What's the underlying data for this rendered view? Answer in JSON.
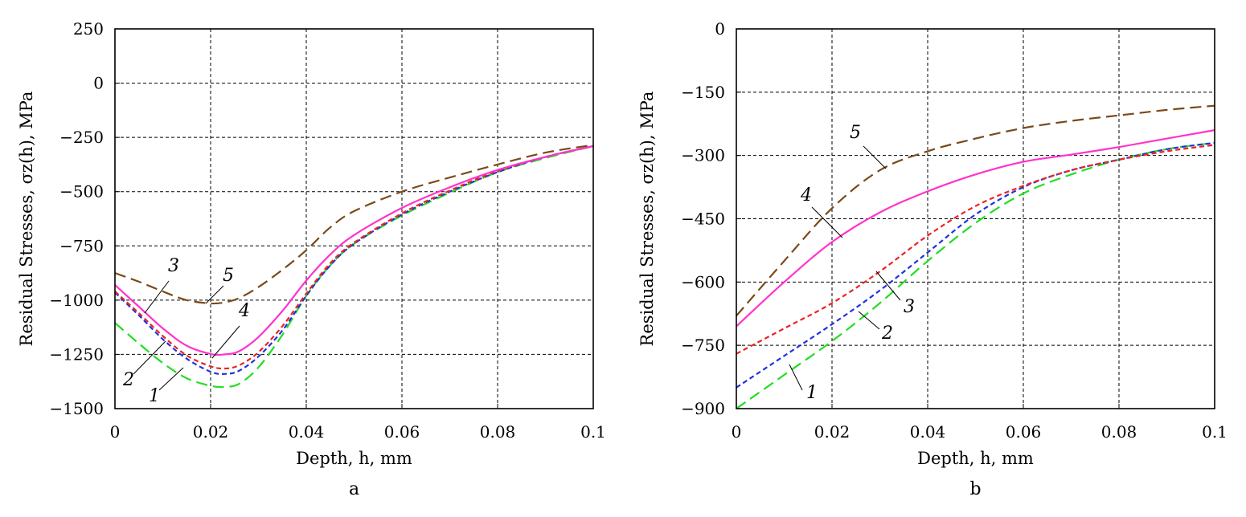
{
  "chart_data": [
    {
      "type": "line",
      "panel_label": "a",
      "xlabel": "Depth, h, mm",
      "ylabel": "Residual Stresses, σz(h), MPa",
      "xlim": [
        0,
        0.1
      ],
      "ylim": [
        -1500,
        250
      ],
      "xticks": [
        0,
        0.02,
        0.04,
        0.06,
        0.08,
        0.1
      ],
      "xtick_labels": [
        "0",
        "0.02",
        "0.04",
        "0.06",
        "0.08",
        "0.1"
      ],
      "yticks": [
        250,
        0,
        -250,
        -500,
        -750,
        -1000,
        -1250,
        -1500
      ],
      "ytick_labels": [
        "250",
        "0",
        "−250",
        "−500",
        "−750",
        "−1000",
        "−1250",
        "−1500"
      ],
      "grid": true,
      "series": [
        {
          "name": "1",
          "color": "#22dd22",
          "dash": "long",
          "x": [
            0,
            0.005,
            0.01,
            0.015,
            0.02,
            0.023,
            0.026,
            0.03,
            0.035,
            0.04,
            0.045,
            0.05,
            0.06,
            0.07,
            0.08,
            0.09,
            0.1
          ],
          "y": [
            -1105,
            -1200,
            -1290,
            -1360,
            -1395,
            -1400,
            -1385,
            -1310,
            -1160,
            -980,
            -840,
            -740,
            -610,
            -505,
            -410,
            -345,
            -290
          ]
        },
        {
          "name": "2",
          "color": "#1f33e0",
          "dash": "short",
          "x": [
            0,
            0.005,
            0.01,
            0.015,
            0.02,
            0.023,
            0.026,
            0.03,
            0.035,
            0.04,
            0.045,
            0.05,
            0.06,
            0.07,
            0.08,
            0.09,
            0.1
          ],
          "y": [
            -965,
            -1070,
            -1180,
            -1270,
            -1330,
            -1340,
            -1325,
            -1260,
            -1140,
            -980,
            -840,
            -740,
            -605,
            -500,
            -410,
            -340,
            -290
          ]
        },
        {
          "name": "3",
          "color": "#ee2222",
          "dash": "short",
          "x": [
            0,
            0.005,
            0.01,
            0.015,
            0.02,
            0.023,
            0.026,
            0.03,
            0.035,
            0.04,
            0.045,
            0.05,
            0.06,
            0.07,
            0.08,
            0.09,
            0.1
          ],
          "y": [
            -960,
            -1060,
            -1165,
            -1255,
            -1305,
            -1315,
            -1300,
            -1240,
            -1120,
            -970,
            -830,
            -735,
            -600,
            -495,
            -405,
            -340,
            -290
          ]
        },
        {
          "name": "4",
          "color": "#ff33cc",
          "dash": "solid",
          "x": [
            0,
            0.005,
            0.01,
            0.015,
            0.02,
            0.023,
            0.026,
            0.03,
            0.035,
            0.04,
            0.045,
            0.05,
            0.06,
            0.07,
            0.08,
            0.09,
            0.1
          ],
          "y": [
            -930,
            -1030,
            -1130,
            -1210,
            -1248,
            -1250,
            -1235,
            -1170,
            -1050,
            -910,
            -790,
            -700,
            -575,
            -480,
            -400,
            -340,
            -290
          ]
        },
        {
          "name": "5",
          "color": "#7a4a1a",
          "dash": "long",
          "x": [
            0,
            0.005,
            0.01,
            0.015,
            0.02,
            0.023,
            0.026,
            0.03,
            0.035,
            0.04,
            0.045,
            0.05,
            0.06,
            0.07,
            0.08,
            0.09,
            0.1
          ],
          "y": [
            -875,
            -915,
            -960,
            -1000,
            -1015,
            -1010,
            -990,
            -940,
            -860,
            -770,
            -665,
            -590,
            -500,
            -435,
            -375,
            -320,
            -285
          ]
        }
      ],
      "curve_labels": [
        "1",
        "2",
        "3",
        "4",
        "5"
      ]
    },
    {
      "type": "line",
      "panel_label": "b",
      "xlabel": "Depth, h, mm",
      "ylabel": "Residual Stresses, σz(h), MPa",
      "xlim": [
        0,
        0.1
      ],
      "ylim": [
        -900,
        0
      ],
      "xticks": [
        0,
        0.02,
        0.04,
        0.06,
        0.08,
        0.1
      ],
      "xtick_labels": [
        "0",
        "0.02",
        "0.04",
        "0.06",
        "0.08",
        "0.1"
      ],
      "yticks": [
        0,
        -150,
        -300,
        -450,
        -600,
        -750,
        -900
      ],
      "ytick_labels": [
        "0",
        "−150",
        "−300",
        "−450",
        "−600",
        "−750",
        "−900"
      ],
      "grid": true,
      "series": [
        {
          "name": "1",
          "color": "#22dd22",
          "dash": "long",
          "x": [
            0,
            0.01,
            0.02,
            0.03,
            0.04,
            0.05,
            0.06,
            0.07,
            0.08,
            0.09,
            0.1
          ],
          "y": [
            -900,
            -820,
            -740,
            -650,
            -550,
            -460,
            -390,
            -345,
            -310,
            -285,
            -270
          ]
        },
        {
          "name": "2",
          "color": "#1f33e0",
          "dash": "short",
          "x": [
            0,
            0.01,
            0.02,
            0.03,
            0.04,
            0.05,
            0.06,
            0.07,
            0.08,
            0.09,
            0.1
          ],
          "y": [
            -850,
            -775,
            -700,
            -620,
            -530,
            -440,
            -375,
            -335,
            -310,
            -285,
            -270
          ]
        },
        {
          "name": "3",
          "color": "#ee2222",
          "dash": "short",
          "x": [
            0,
            0.01,
            0.02,
            0.03,
            0.04,
            0.05,
            0.06,
            0.07,
            0.08,
            0.09,
            0.1
          ],
          "y": [
            -770,
            -710,
            -650,
            -575,
            -490,
            -420,
            -372,
            -335,
            -310,
            -290,
            -275
          ]
        },
        {
          "name": "4",
          "color": "#ff33cc",
          "dash": "solid",
          "x": [
            0,
            0.01,
            0.02,
            0.03,
            0.04,
            0.05,
            0.06,
            0.07,
            0.08,
            0.09,
            0.1
          ],
          "y": [
            -705,
            -600,
            -505,
            -435,
            -385,
            -345,
            -315,
            -298,
            -280,
            -260,
            -240
          ]
        },
        {
          "name": "5",
          "color": "#7a4a1a",
          "dash": "long",
          "x": [
            0,
            0.01,
            0.02,
            0.03,
            0.04,
            0.05,
            0.06,
            0.07,
            0.08,
            0.09,
            0.1
          ],
          "y": [
            -680,
            -550,
            -425,
            -335,
            -290,
            -260,
            -235,
            -218,
            -205,
            -192,
            -182
          ]
        }
      ],
      "curve_labels": [
        "1",
        "2",
        "3",
        "4",
        "5"
      ]
    }
  ]
}
